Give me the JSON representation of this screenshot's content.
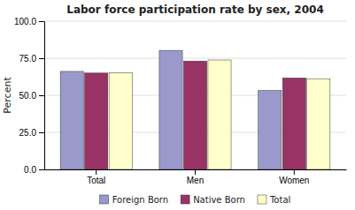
{
  "chart_data": {
    "type": "bar",
    "title": "Labor force participation rate by sex, 2004",
    "categories": [
      "Total",
      "Men",
      "Women"
    ],
    "series": [
      {
        "name": "Foreign Born",
        "color": "#9999cc",
        "values": [
          66.1,
          80.3,
          53.2
        ]
      },
      {
        "name": "Native Born",
        "color": "#993366",
        "values": [
          65.0,
          73.1,
          61.7
        ]
      },
      {
        "name": "Total",
        "color": "#ffffcc",
        "values": [
          65.2,
          73.8,
          61.2
        ]
      }
    ],
    "ylabel": "Percent",
    "ylim": [
      0,
      100
    ],
    "yticks": [
      {
        "value": 0,
        "label": "0.0"
      },
      {
        "value": 25,
        "label": "25.0"
      },
      {
        "value": 50,
        "label": "50.0"
      },
      {
        "value": 75,
        "label": "75.0"
      },
      {
        "value": 100,
        "label": "100.0"
      }
    ],
    "grid": true,
    "legend": "bottom"
  }
}
